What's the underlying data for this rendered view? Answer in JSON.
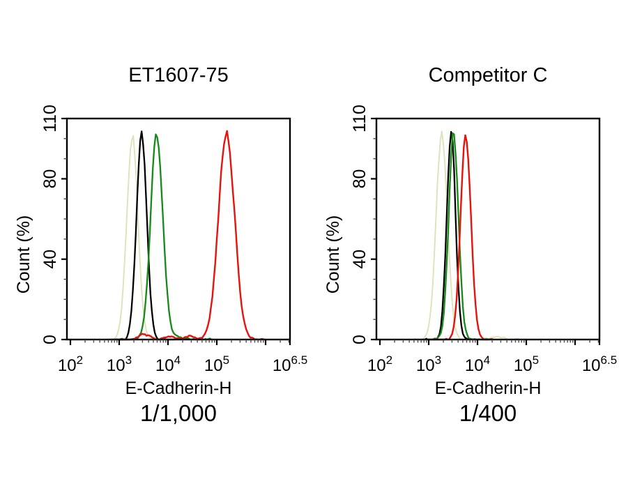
{
  "page": {
    "background": "#ffffff",
    "figure_kind": "flow-cytometry-overlay-histograms"
  },
  "chart_data": [
    {
      "type": "line",
      "title": "ET1607-75",
      "subtitle": "1/1,000",
      "xlabel": "E-Cadherin-H",
      "ylabel": "Count  (%)",
      "x_scale": "log10",
      "x_range_log10": [
        2,
        6.5
      ],
      "ylim": [
        0,
        110
      ],
      "grid": false,
      "legend": "none",
      "x_major_ticks": [
        {
          "log": 2,
          "label_base": "10",
          "label_exp": "2"
        },
        {
          "log": 3,
          "label_base": "10",
          "label_exp": "3"
        },
        {
          "log": 4,
          "label_base": "10",
          "label_exp": "4"
        },
        {
          "log": 5,
          "label_base": "10",
          "label_exp": "5"
        },
        {
          "log": 6,
          "label_base": "10",
          "label_exp": null
        },
        {
          "log": 6.5,
          "label_base": "10",
          "label_exp": "6.5"
        }
      ],
      "y_major_ticks": [
        {
          "value": 0,
          "label": "0"
        },
        {
          "value": 40,
          "label": "40"
        },
        {
          "value": 80,
          "label": "80"
        },
        {
          "value": 110,
          "label": "110"
        }
      ],
      "y_minor_ticks": [
        10,
        20,
        30,
        50,
        60,
        70,
        90,
        100
      ],
      "series": [
        {
          "name": "light-green-control",
          "color": "#dce2ba",
          "stroke_width": 1.9,
          "peak_log10": 3.27,
          "sigma_log10": 0.115,
          "peak_count_pct": 101,
          "span_log10": [
            2.72,
            4.2
          ],
          "seed": 7,
          "baseline_bumps": []
        },
        {
          "name": "black-control",
          "color": "#000000",
          "stroke_width": 2.3,
          "peak_log10": 3.46,
          "sigma_log10": 0.105,
          "peak_count_pct": 103,
          "span_log10": [
            2.95,
            4.1
          ],
          "seed": 13,
          "baseline_bumps": []
        },
        {
          "name": "dark-green-control",
          "color": "#158a15",
          "stroke_width": 2.3,
          "peak_log10": 3.77,
          "sigma_log10": 0.125,
          "peak_count_pct": 102,
          "span_log10": [
            2.88,
            4.9
          ],
          "seed": 21,
          "baseline_bumps": [
            {
              "log10": 4.25,
              "height": 1.2,
              "sigma": 0.12
            }
          ]
        },
        {
          "name": "red-antibody",
          "color": "#e6130c",
          "stroke_width": 2.4,
          "peak_log10": 5.2,
          "sigma_log10": 0.165,
          "peak_count_pct": 102,
          "span_log10": [
            3.05,
            5.95
          ],
          "seed": 29,
          "baseline_bumps": [
            {
              "log10": 3.5,
              "height": 2.4,
              "sigma": 0.13
            },
            {
              "log10": 4.0,
              "height": 1.6,
              "sigma": 0.11
            },
            {
              "log10": 4.45,
              "height": 2.0,
              "sigma": 0.1
            }
          ]
        }
      ]
    },
    {
      "type": "line",
      "title": "Competitor C",
      "subtitle": "1/400",
      "xlabel": "E-Cadherin-H",
      "ylabel": "Count  (%)",
      "x_scale": "log10",
      "x_range_log10": [
        2,
        6.5
      ],
      "ylim": [
        0,
        110
      ],
      "grid": false,
      "legend": "none",
      "x_major_ticks": [
        {
          "log": 2,
          "label_base": "10",
          "label_exp": "2"
        },
        {
          "log": 3,
          "label_base": "10",
          "label_exp": "3"
        },
        {
          "log": 4,
          "label_base": "10",
          "label_exp": "4"
        },
        {
          "log": 5,
          "label_base": "10",
          "label_exp": "5"
        },
        {
          "log": 6,
          "label_base": "10",
          "label_exp": null
        },
        {
          "log": 6.5,
          "label_base": "10",
          "label_exp": "6.5"
        }
      ],
      "y_major_ticks": [
        {
          "value": 0,
          "label": "0"
        },
        {
          "value": 40,
          "label": "40"
        },
        {
          "value": 80,
          "label": "80"
        },
        {
          "value": 110,
          "label": "110"
        }
      ],
      "y_minor_ticks": [
        10,
        20,
        30,
        50,
        60,
        70,
        90,
        100
      ],
      "series": [
        {
          "name": "light-green-control",
          "color": "#dce2ba",
          "stroke_width": 1.9,
          "peak_log10": 3.27,
          "sigma_log10": 0.115,
          "peak_count_pct": 102,
          "span_log10": [
            2.7,
            4.85
          ],
          "seed": 37,
          "baseline_bumps": [
            {
              "log10": 4.4,
              "height": 1.2,
              "sigma": 0.15
            }
          ]
        },
        {
          "name": "black-control",
          "color": "#000000",
          "stroke_width": 2.3,
          "peak_log10": 3.46,
          "sigma_log10": 0.09,
          "peak_count_pct": 103,
          "span_log10": [
            2.95,
            3.95
          ],
          "seed": 43,
          "baseline_bumps": []
        },
        {
          "name": "dark-green-control",
          "color": "#158a15",
          "stroke_width": 2.3,
          "peak_log10": 3.51,
          "sigma_log10": 0.1,
          "peak_count_pct": 102,
          "span_log10": [
            2.86,
            4.25
          ],
          "seed": 51,
          "baseline_bumps": []
        },
        {
          "name": "red-antibody",
          "color": "#e6130c",
          "stroke_width": 2.4,
          "peak_log10": 3.76,
          "sigma_log10": 0.105,
          "peak_count_pct": 103,
          "span_log10": [
            3.12,
            4.3
          ],
          "seed": 59,
          "baseline_bumps": []
        }
      ]
    }
  ]
}
